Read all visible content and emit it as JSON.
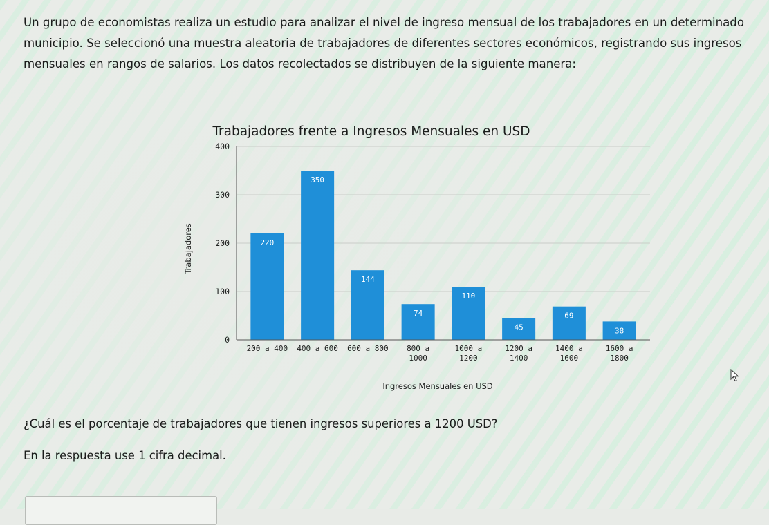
{
  "intro_text": "Un grupo de economistas realiza un estudio para analizar el nivel de ingreso mensual de los trabajadores en un determinado municipio. Se seleccionó una muestra aleatoria de trabajadores de diferentes sectores económicos, registrando sus ingresos mensuales en rangos de salarios. Los datos recolectados se distribuyen de la siguiente manera:",
  "chart_data": {
    "type": "bar",
    "title": "Trabajadores frente a Ingresos Mensuales en USD",
    "xlabel": "Ingresos Mensuales en USD",
    "ylabel": "Trabajadores",
    "ylim": [
      0,
      400
    ],
    "yticks": [
      "0",
      "100",
      "200",
      "300",
      "400"
    ],
    "grid": "horizontal",
    "bar_color": "#1f8fd8",
    "categories": [
      [
        "200 a 400"
      ],
      [
        "400 a 600"
      ],
      [
        "600 a 800"
      ],
      [
        "800 a",
        "1000"
      ],
      [
        "1000 a",
        "1200"
      ],
      [
        "1200 a",
        "1400"
      ],
      [
        "1400 a",
        "1600"
      ],
      [
        "1600 a",
        "1800"
      ]
    ],
    "values": [
      220,
      350,
      144,
      74,
      110,
      45,
      69,
      38
    ],
    "data_labels": [
      "220",
      "350",
      "144",
      "74",
      "110",
      "45",
      "69",
      "38"
    ]
  },
  "question": "¿Cuál es el porcentaje de trabajadores que tienen ingresos superiores a 1200 USD?",
  "instruction": "En la respuesta use 1 cifra decimal.",
  "answer": {
    "value": ""
  },
  "icons": {
    "pointer": "mouse-pointer-icon"
  }
}
